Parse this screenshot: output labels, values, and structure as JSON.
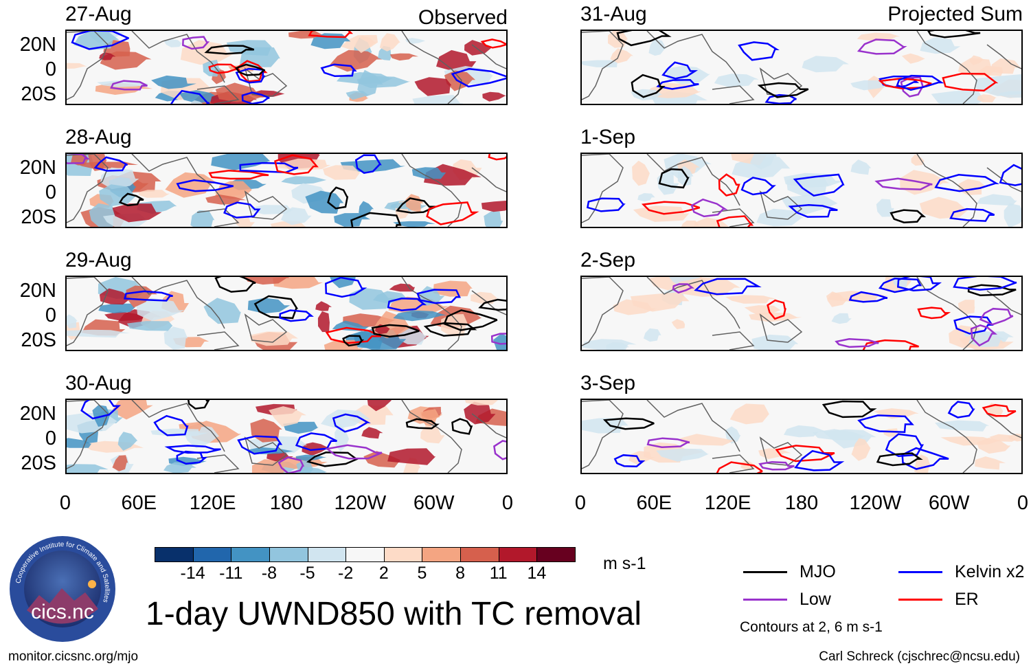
{
  "chart_data": {
    "type": "heatmap",
    "title": "1-day UWND850 with TC removal",
    "units": "m s-1",
    "colorbar": {
      "ticks": [
        "-14",
        "-11",
        "-8",
        "-5",
        "-2",
        "2",
        "5",
        "8",
        "11",
        "14"
      ],
      "colors": [
        "#08306b",
        "#2166ac",
        "#4393c3",
        "#92c5de",
        "#d1e5f0",
        "#f7f7f7",
        "#fddbc7",
        "#f4a582",
        "#d6604d",
        "#b2182b",
        "#67001f"
      ]
    },
    "columns": [
      {
        "tag": "Observed",
        "dates": [
          "27-Aug",
          "28-Aug",
          "29-Aug",
          "30-Aug"
        ]
      },
      {
        "tag": "Projected Sum",
        "dates": [
          "31-Aug",
          "1-Sep",
          "2-Sep",
          "3-Sep"
        ]
      }
    ],
    "y_ticks": [
      "20N",
      "0",
      "20S"
    ],
    "x_ticks": [
      "0",
      "60E",
      "120E",
      "180",
      "120W",
      "60W",
      "0"
    ],
    "legend": [
      {
        "label": "MJO",
        "color": "#000000"
      },
      {
        "label": "Kelvin x2",
        "color": "#0000ff"
      },
      {
        "label": "Low",
        "color": "#9932cc"
      },
      {
        "label": "ER",
        "color": "#ff0000"
      }
    ],
    "contour_note": "Contours at 2, 6 m s-1"
  },
  "logo": {
    "text": "cics.nc",
    "ring_text": "Cooperative Institute for Climate and Satellites"
  },
  "footer": {
    "left": "monitor.cicsnc.org/mjo",
    "right": "Carl Schreck (cjschrec@ncsu.edu)"
  }
}
